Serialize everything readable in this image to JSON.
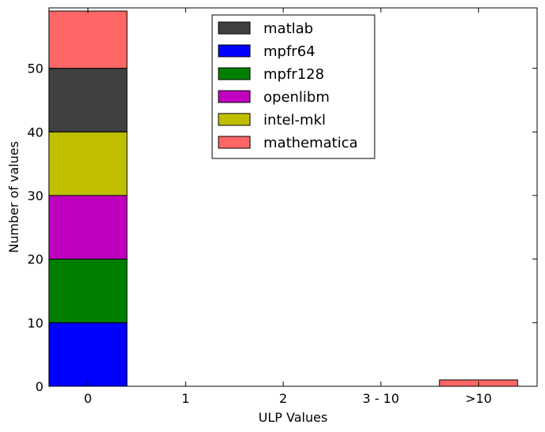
{
  "chart_data": {
    "type": "bar",
    "stacked": true,
    "xlabel": "ULP Values",
    "ylabel": "Number of values",
    "categories": [
      "0",
      "1",
      "2",
      "3 - 10",
      ">10"
    ],
    "ylim": [
      0,
      59.5
    ],
    "yticks": [
      0,
      10,
      20,
      30,
      40,
      50
    ],
    "series": [
      {
        "name": "mpfr64",
        "color": "#0000ff",
        "values": [
          10,
          0,
          0,
          0,
          0
        ]
      },
      {
        "name": "mpfr128",
        "color": "#008000",
        "values": [
          10,
          0,
          0,
          0,
          0
        ]
      },
      {
        "name": "openlibm",
        "color": "#bf00bf",
        "values": [
          10,
          0,
          0,
          0,
          0
        ]
      },
      {
        "name": "intel-mkl",
        "color": "#bfbf00",
        "values": [
          10,
          0,
          0,
          0,
          0
        ]
      },
      {
        "name": "matlab",
        "color": "#404040",
        "values": [
          10,
          0,
          0,
          0,
          0
        ]
      },
      {
        "name": "mathematica",
        "color": "#ff6666",
        "values": [
          9,
          0,
          0,
          0,
          1
        ]
      }
    ],
    "legend": {
      "position": "top-center",
      "order": [
        "matlab",
        "mpfr64",
        "mpfr128",
        "openlibm",
        "intel-mkl",
        "mathematica"
      ]
    },
    "grid": false
  }
}
